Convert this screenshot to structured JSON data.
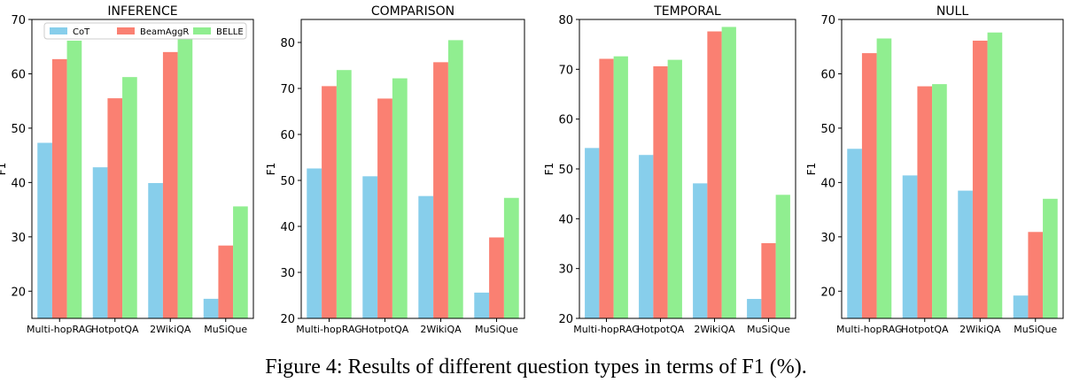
{
  "caption": "Figure 4: Results of different question types in terms of F1 (%).",
  "colors": {
    "CoT": "#87CEEB",
    "BeamAggR": "#FA8072",
    "BELLE": "#90EE90"
  },
  "chart_data": [
    {
      "type": "bar",
      "title": "INFERENCE",
      "ylabel": "F1",
      "xlabel": "",
      "categories": [
        "Multi-hopRAG",
        "HotpotQA",
        "2WikiQA",
        "MuSiQue"
      ],
      "ylim": [
        15,
        70
      ],
      "yticks": [
        20,
        30,
        40,
        50,
        60,
        70
      ],
      "legend": "top-left",
      "grid": false,
      "series": [
        {
          "name": "CoT",
          "values": [
            47.3,
            42.8,
            39.9,
            18.6
          ]
        },
        {
          "name": "BeamAggR",
          "values": [
            62.7,
            55.5,
            64.0,
            28.4
          ]
        },
        {
          "name": "BELLE",
          "values": [
            66.1,
            59.4,
            66.8,
            35.6
          ]
        }
      ]
    },
    {
      "type": "bar",
      "title": "COMPARISON",
      "ylabel": "F1",
      "xlabel": "",
      "categories": [
        "Multi-hopRAG",
        "HotpotQA",
        "2WikiQA",
        "MuSiQue"
      ],
      "ylim": [
        20,
        85
      ],
      "yticks": [
        20,
        30,
        40,
        50,
        60,
        70,
        80
      ],
      "grid": false,
      "series": [
        {
          "name": "CoT",
          "values": [
            52.6,
            50.9,
            46.6,
            25.6
          ]
        },
        {
          "name": "BeamAggR",
          "values": [
            70.5,
            67.8,
            75.7,
            37.6
          ]
        },
        {
          "name": "BELLE",
          "values": [
            74.0,
            72.2,
            80.5,
            46.2
          ]
        }
      ]
    },
    {
      "type": "bar",
      "title": "TEMPORAL",
      "ylabel": "F1",
      "xlabel": "",
      "categories": [
        "Multi-hopRAG",
        "HotpotQA",
        "2WikiQA",
        "MuSiQue"
      ],
      "ylim": [
        20,
        80
      ],
      "yticks": [
        20,
        30,
        40,
        50,
        60,
        70,
        80
      ],
      "grid": false,
      "series": [
        {
          "name": "CoT",
          "values": [
            54.2,
            52.8,
            47.1,
            23.9
          ]
        },
        {
          "name": "BeamAggR",
          "values": [
            72.1,
            70.6,
            77.6,
            35.1
          ]
        },
        {
          "name": "BELLE",
          "values": [
            72.6,
            71.9,
            78.5,
            44.8
          ]
        }
      ]
    },
    {
      "type": "bar",
      "title": "NULL",
      "ylabel": "F1",
      "xlabel": "",
      "categories": [
        "Multi-hopRAG",
        "HotpotQA",
        "2WikiQA",
        "MuSiQue"
      ],
      "ylim": [
        15,
        70
      ],
      "yticks": [
        20,
        30,
        40,
        50,
        60,
        70
      ],
      "grid": false,
      "series": [
        {
          "name": "CoT",
          "values": [
            46.2,
            41.3,
            38.5,
            19.2
          ]
        },
        {
          "name": "BeamAggR",
          "values": [
            63.8,
            57.7,
            66.1,
            30.9
          ]
        },
        {
          "name": "BELLE",
          "values": [
            66.5,
            58.1,
            67.6,
            37.0
          ]
        }
      ]
    }
  ]
}
